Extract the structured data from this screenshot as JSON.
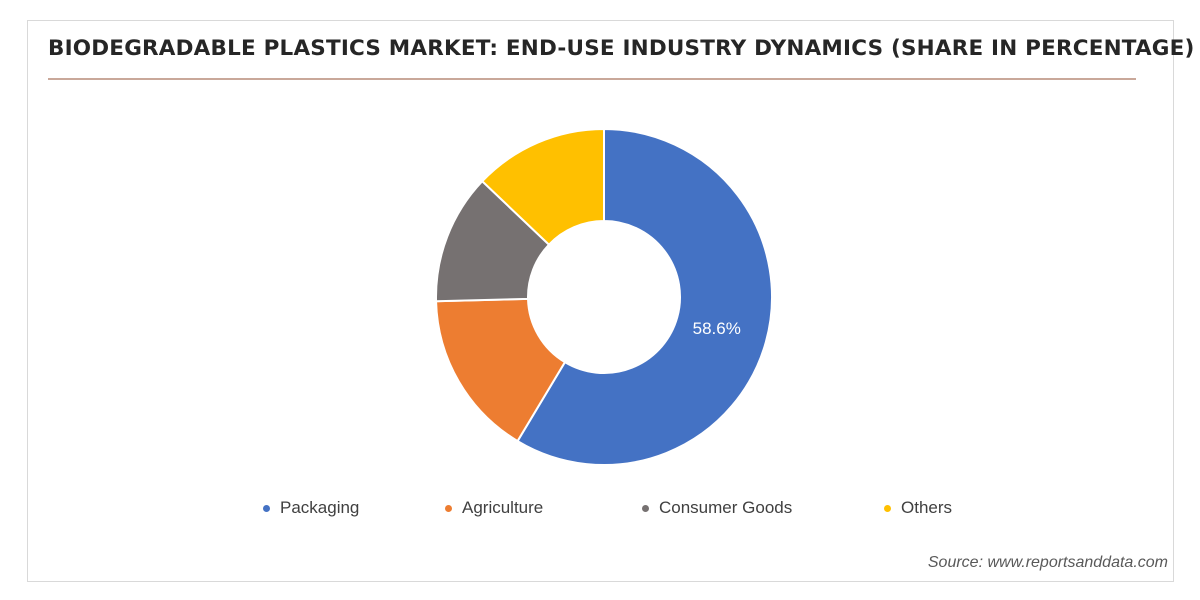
{
  "chart_data": {
    "type": "pie",
    "title": "BIODEGRADABLE PLASTICS MARKET: END-USE INDUSTRY DYNAMICS (SHARE IN PERCENTAGE)",
    "categories": [
      "Packaging",
      "Agriculture",
      "Consumer Goods",
      "Others"
    ],
    "values": [
      58.6,
      16.0,
      12.5,
      12.9
    ],
    "data_labels": [
      "58.6%",
      "",
      "",
      ""
    ],
    "colors": [
      "#4472c4",
      "#ed7d31",
      "#767171",
      "#ffc000"
    ],
    "donut": true,
    "legend_position": "bottom",
    "start": "top",
    "direction": "clockwise"
  },
  "source": "Source: www.reportsanddata.com"
}
